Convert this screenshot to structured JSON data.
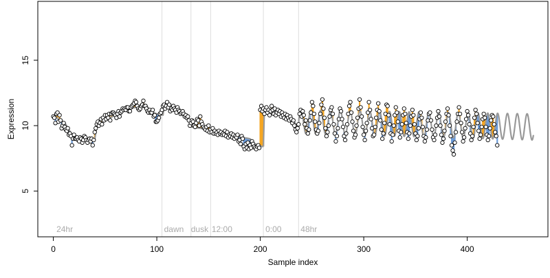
{
  "chart_data": {
    "type": "scatter",
    "title": "",
    "xlabel": "Sample index",
    "ylabel": "Expression",
    "xlim": [
      -15,
      478
    ],
    "ylim": [
      1.5,
      19.5
    ],
    "x_ticks": [
      0,
      100,
      200,
      300,
      400
    ],
    "y_ticks": [
      5,
      10,
      15
    ],
    "grid": false,
    "legend": "none",
    "colors": {
      "above_fit": "#f5a623",
      "below_fit": "#6c9bd8",
      "fit_line": "#999999",
      "points_fill": "#ffffff",
      "points_stroke": "#000000",
      "vlines": "#dddddd",
      "annotation_text": "#aaaaaa"
    },
    "vlines": [
      105,
      133,
      152,
      203,
      237
    ],
    "annotations": [
      {
        "x": 3,
        "text": "24hr"
      },
      {
        "x": 107,
        "text": "dawn"
      },
      {
        "x": 133,
        "text": "dusk"
      },
      {
        "x": 153,
        "text": "12:00"
      },
      {
        "x": 205,
        "text": "0:00"
      },
      {
        "x": 239,
        "text": "48hr"
      }
    ],
    "segments": [
      {
        "x_start": 0,
        "x_end": 203,
        "knots": [
          [
            0,
            10.8
          ],
          [
            12,
            10.1
          ],
          [
            18,
            9.3
          ],
          [
            24,
            9.1
          ],
          [
            40,
            8.9
          ],
          [
            42,
            10.0
          ],
          [
            55,
            10.6
          ],
          [
            70,
            11.2
          ],
          [
            90,
            11.6
          ],
          [
            93,
            11.1
          ],
          [
            100,
            10.9
          ],
          [
            106,
            10.8
          ],
          [
            107,
            11.5
          ],
          [
            130,
            10.6
          ],
          [
            133,
            9.9
          ],
          [
            150,
            9.7
          ],
          [
            170,
            9.3
          ],
          [
            190,
            9.0
          ],
          [
            195,
            8.6
          ],
          [
            202,
            8.4
          ]
        ]
      },
      {
        "x_start": 203,
        "x_end": 237,
        "knots": [
          [
            203,
            11.3
          ],
          [
            215,
            11.1
          ],
          [
            225,
            10.7
          ],
          [
            233,
            10.3
          ],
          [
            237,
            9.7
          ]
        ]
      },
      {
        "x_start": 237,
        "x_end": 464,
        "knots": [
          [
            237,
            9.7
          ],
          [
            464,
            9.2
          ]
        ],
        "oscillation": {
          "mean_start": 10.3,
          "mean_end": 9.9,
          "amplitude_start": 0.9,
          "amplitude_end": 1.0,
          "period": 9.5,
          "phase": 0.0
        }
      }
    ],
    "points_y": [
      10.7,
      10.6,
      10.2,
      10.9,
      11.0,
      10.3,
      10.8,
      10.4,
      9.8,
      10.0,
      10.2,
      9.9,
      9.7,
      9.6,
      9.8,
      9.3,
      9.4,
      9.2,
      8.5,
      9.0,
      9.3,
      9.0,
      9.0,
      9.1,
      8.9,
      8.8,
      9.1,
      9.0,
      8.7,
      8.9,
      9.2,
      9.1,
      8.9,
      8.7,
      8.9,
      9.0,
      8.8,
      9.0,
      8.5,
      8.9,
      9.5,
      9.8,
      10.1,
      10.3,
      10.0,
      10.2,
      10.5,
      10.1,
      10.6,
      10.4,
      10.8,
      10.5,
      10.8,
      10.6,
      10.9,
      10.4,
      10.9,
      11.0,
      11.0,
      10.9,
      10.8,
      10.6,
      10.9,
      11.1,
      10.7,
      11.0,
      11.1,
      11.3,
      11.2,
      11.3,
      11.2,
      11.4,
      11.4,
      11.1,
      11.1,
      11.4,
      11.5,
      11.6,
      11.7,
      11.9,
      11.8,
      11.5,
      11.3,
      11.2,
      11.3,
      11.5,
      11.6,
      11.9,
      11.5,
      11.5,
      11.3,
      11.1,
      11.0,
      11.2,
      11.0,
      11.0,
      11.2,
      10.7,
      10.8,
      10.3,
      10.3,
      10.4,
      10.6,
      10.9,
      11.0,
      11.2,
      11.5,
      11.6,
      11.3,
      11.5,
      11.8,
      11.4,
      11.6,
      11.1,
      11.3,
      11.2,
      11.5,
      11.3,
      11.2,
      11.0,
      11.4,
      11.2,
      11.1,
      10.9,
      11.0,
      11.1,
      10.9,
      10.7,
      10.8,
      10.6,
      10.7,
      10.4,
      10.0,
      10.2,
      10.4,
      10.3,
      10.0,
      9.9,
      10.2,
      10.5,
      10.4,
      10.0,
      10.7,
      10.3,
      10.1,
      9.9,
      9.8,
      9.7,
      9.9,
      9.6,
      10.0,
      9.5,
      9.7,
      9.5,
      9.8,
      9.4,
      9.6,
      9.4,
      9.5,
      9.3,
      9.6,
      9.4,
      9.5,
      9.3,
      9.4,
      9.3,
      9.6,
      9.2,
      9.5,
      9.1,
      9.3,
      9.2,
      9.4,
      9.1,
      9.3,
      9.0,
      9.2,
      9.1,
      9.3,
      8.8,
      8.9,
      8.6,
      9.2,
      9.0,
      8.4,
      8.2,
      8.6,
      8.3,
      8.7,
      8.2,
      8.5,
      8.3,
      8.8,
      8.6,
      8.4,
      8.3,
      8.2,
      8.4,
      8.5,
      8.3,
      11.2,
      11.5,
      11.1,
      11.3,
      10.9,
      11.2,
      11.4,
      11.0,
      11.2,
      10.8,
      11.1,
      11.5,
      11.2,
      10.9,
      11.3,
      10.8,
      11.0,
      11.2,
      10.9,
      11.1,
      10.7,
      11.0,
      10.8,
      10.6,
      10.9,
      10.5,
      10.8,
      10.6,
      10.4,
      10.7,
      10.5,
      10.2,
      10.4,
      10.0,
      9.7,
      9.5,
      9.8,
      10.1,
      10.9,
      11.2,
      10.7,
      11.1,
      10.8,
      10.1,
      10.4,
      9.8,
      9.4,
      9.7,
      10.4,
      11.0,
      11.8,
      11.5,
      10.9,
      10.3,
      9.7,
      9.4,
      9.6,
      10.2,
      10.9,
      11.6,
      12.0,
      11.3,
      10.6,
      9.8,
      9.2,
      9.5,
      10.0,
      10.7,
      11.2,
      11.4,
      10.9,
      10.1,
      9.4,
      8.8,
      9.2,
      9.8,
      10.5,
      11.3,
      11.1,
      10.5,
      9.9,
      9.2,
      8.9,
      9.4,
      10.1,
      10.9,
      11.5,
      11.8,
      11.0,
      10.3,
      9.6,
      9.1,
      9.3,
      10.0,
      10.6,
      11.3,
      12.0,
      11.4,
      10.7,
      9.9,
      9.3,
      8.9,
      9.6,
      10.2,
      11.0,
      11.8,
      11.2,
      10.5,
      9.8,
      9.2,
      9.3,
      9.9,
      10.6,
      11.2,
      11.7,
      11.1,
      10.4,
      9.7,
      9.0,
      9.4,
      10.2,
      10.9,
      11.6,
      11.5,
      10.8,
      10.1,
      9.4,
      8.8,
      9.3,
      10.0,
      10.8,
      11.4,
      11.0,
      10.3,
      9.6,
      9.1,
      9.5,
      10.1,
      10.8,
      11.3,
      10.9,
      10.2,
      9.5,
      9.0,
      9.4,
      10.0,
      10.7,
      11.2,
      10.8,
      10.1,
      9.4,
      8.9,
      9.2,
      9.8,
      10.5,
      11.0,
      10.6,
      9.9,
      9.2,
      8.8,
      9.1,
      9.7,
      10.4,
      10.9,
      11.0,
      10.4,
      9.7,
      9.1,
      8.9,
      9.3,
      10.0,
      10.6,
      11.1,
      10.7,
      10.0,
      9.3,
      8.7,
      9.0,
      9.6,
      10.3,
      10.9,
      11.3,
      10.8,
      10.0,
      9.2,
      8.5,
      8.1,
      7.8,
      8.7,
      9.5,
      10.3,
      10.9,
      11.4,
      10.9,
      10.2,
      9.5,
      8.8,
      9.1,
      9.8,
      10.5,
      11.1,
      10.8,
      10.1,
      9.4,
      8.9,
      9.2,
      9.9,
      10.6,
      11.2,
      10.9,
      10.2,
      9.6,
      9.0,
      9.3,
      9.9,
      10.5,
      10.9,
      10.6,
      9.9,
      9.3,
      8.9,
      9.2,
      9.8,
      10.4,
      10.8,
      10.7,
      10.1,
      9.5,
      9.2,
      8.5
    ]
  }
}
